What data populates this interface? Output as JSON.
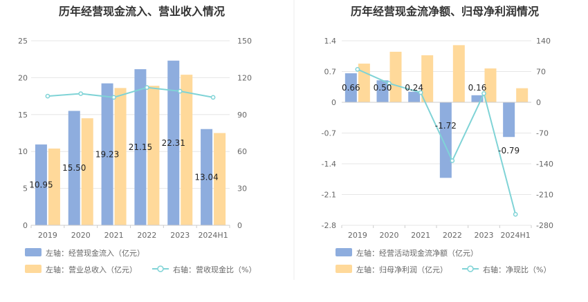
{
  "chart_data": [
    {
      "type": "bar",
      "title": "历年经营现金流入、营业收入情况",
      "categories": [
        "2019",
        "2020",
        "2021",
        "2022",
        "2023",
        "2024H1"
      ],
      "y_left": {
        "ticks": [
          "0",
          "5",
          "10",
          "15",
          "20",
          "25"
        ],
        "range": [
          0,
          25
        ]
      },
      "y_right": {
        "ticks": [
          "0",
          "30",
          "60",
          "90",
          "120",
          "150"
        ],
        "range": [
          0,
          150
        ]
      },
      "series": [
        {
          "name": "左轴：经营现金流入（亿元）",
          "type": "bar",
          "axis": "left",
          "color": "#8eadde",
          "values": [
            10.95,
            15.5,
            19.23,
            21.15,
            22.31,
            13.04
          ],
          "labels": [
            "10.95",
            "15.50",
            "19.23",
            "21.15",
            "22.31",
            "13.04"
          ]
        },
        {
          "name": "左轴：营业总收入（亿元）",
          "type": "bar",
          "axis": "left",
          "color": "#ffd99a",
          "values": [
            10.4,
            14.5,
            18.6,
            18.9,
            20.4,
            12.5
          ]
        },
        {
          "name": "右轴：营收现金比（%）",
          "type": "line",
          "axis": "right",
          "color": "#7fd3d6",
          "values": [
            105,
            107,
            104,
            112,
            109,
            104
          ]
        }
      ],
      "legend_position": "bottom",
      "grid": true
    },
    {
      "type": "bar",
      "title": "历年经营现金流净额、归母净利润情况",
      "categories": [
        "2019",
        "2020",
        "2021",
        "2022",
        "2023",
        "2024H1"
      ],
      "y_left": {
        "ticks": [
          "-2.8",
          "-2.1",
          "-1.4",
          "-0.7",
          "0",
          "0.7",
          "1.4"
        ],
        "range": [
          -2.8,
          1.4
        ]
      },
      "y_right": {
        "ticks": [
          "-280",
          "-210",
          "-140",
          "-70",
          "0",
          "70",
          "140"
        ],
        "range": [
          -280,
          140
        ]
      },
      "series": [
        {
          "name": "左轴：经营活动现金流净额（亿元）",
          "type": "bar",
          "axis": "left",
          "color": "#8eadde",
          "values": [
            0.66,
            0.5,
            0.24,
            -1.72,
            0.16,
            -0.79
          ],
          "labels": [
            "0.66",
            "0.50",
            "0.24",
            "-1.72",
            "0.16",
            "-0.79"
          ]
        },
        {
          "name": "左轴：归母净利润（亿元）",
          "type": "bar",
          "axis": "left",
          "color": "#ffd99a",
          "values": [
            0.88,
            1.15,
            1.07,
            1.3,
            0.77,
            0.32
          ]
        },
        {
          "name": "右轴：净现比（%）",
          "type": "line",
          "axis": "right",
          "color": "#7fd3d6",
          "values": [
            75,
            43,
            22,
            -133,
            20,
            -255
          ]
        }
      ],
      "legend_position": "bottom",
      "grid": true
    }
  ]
}
